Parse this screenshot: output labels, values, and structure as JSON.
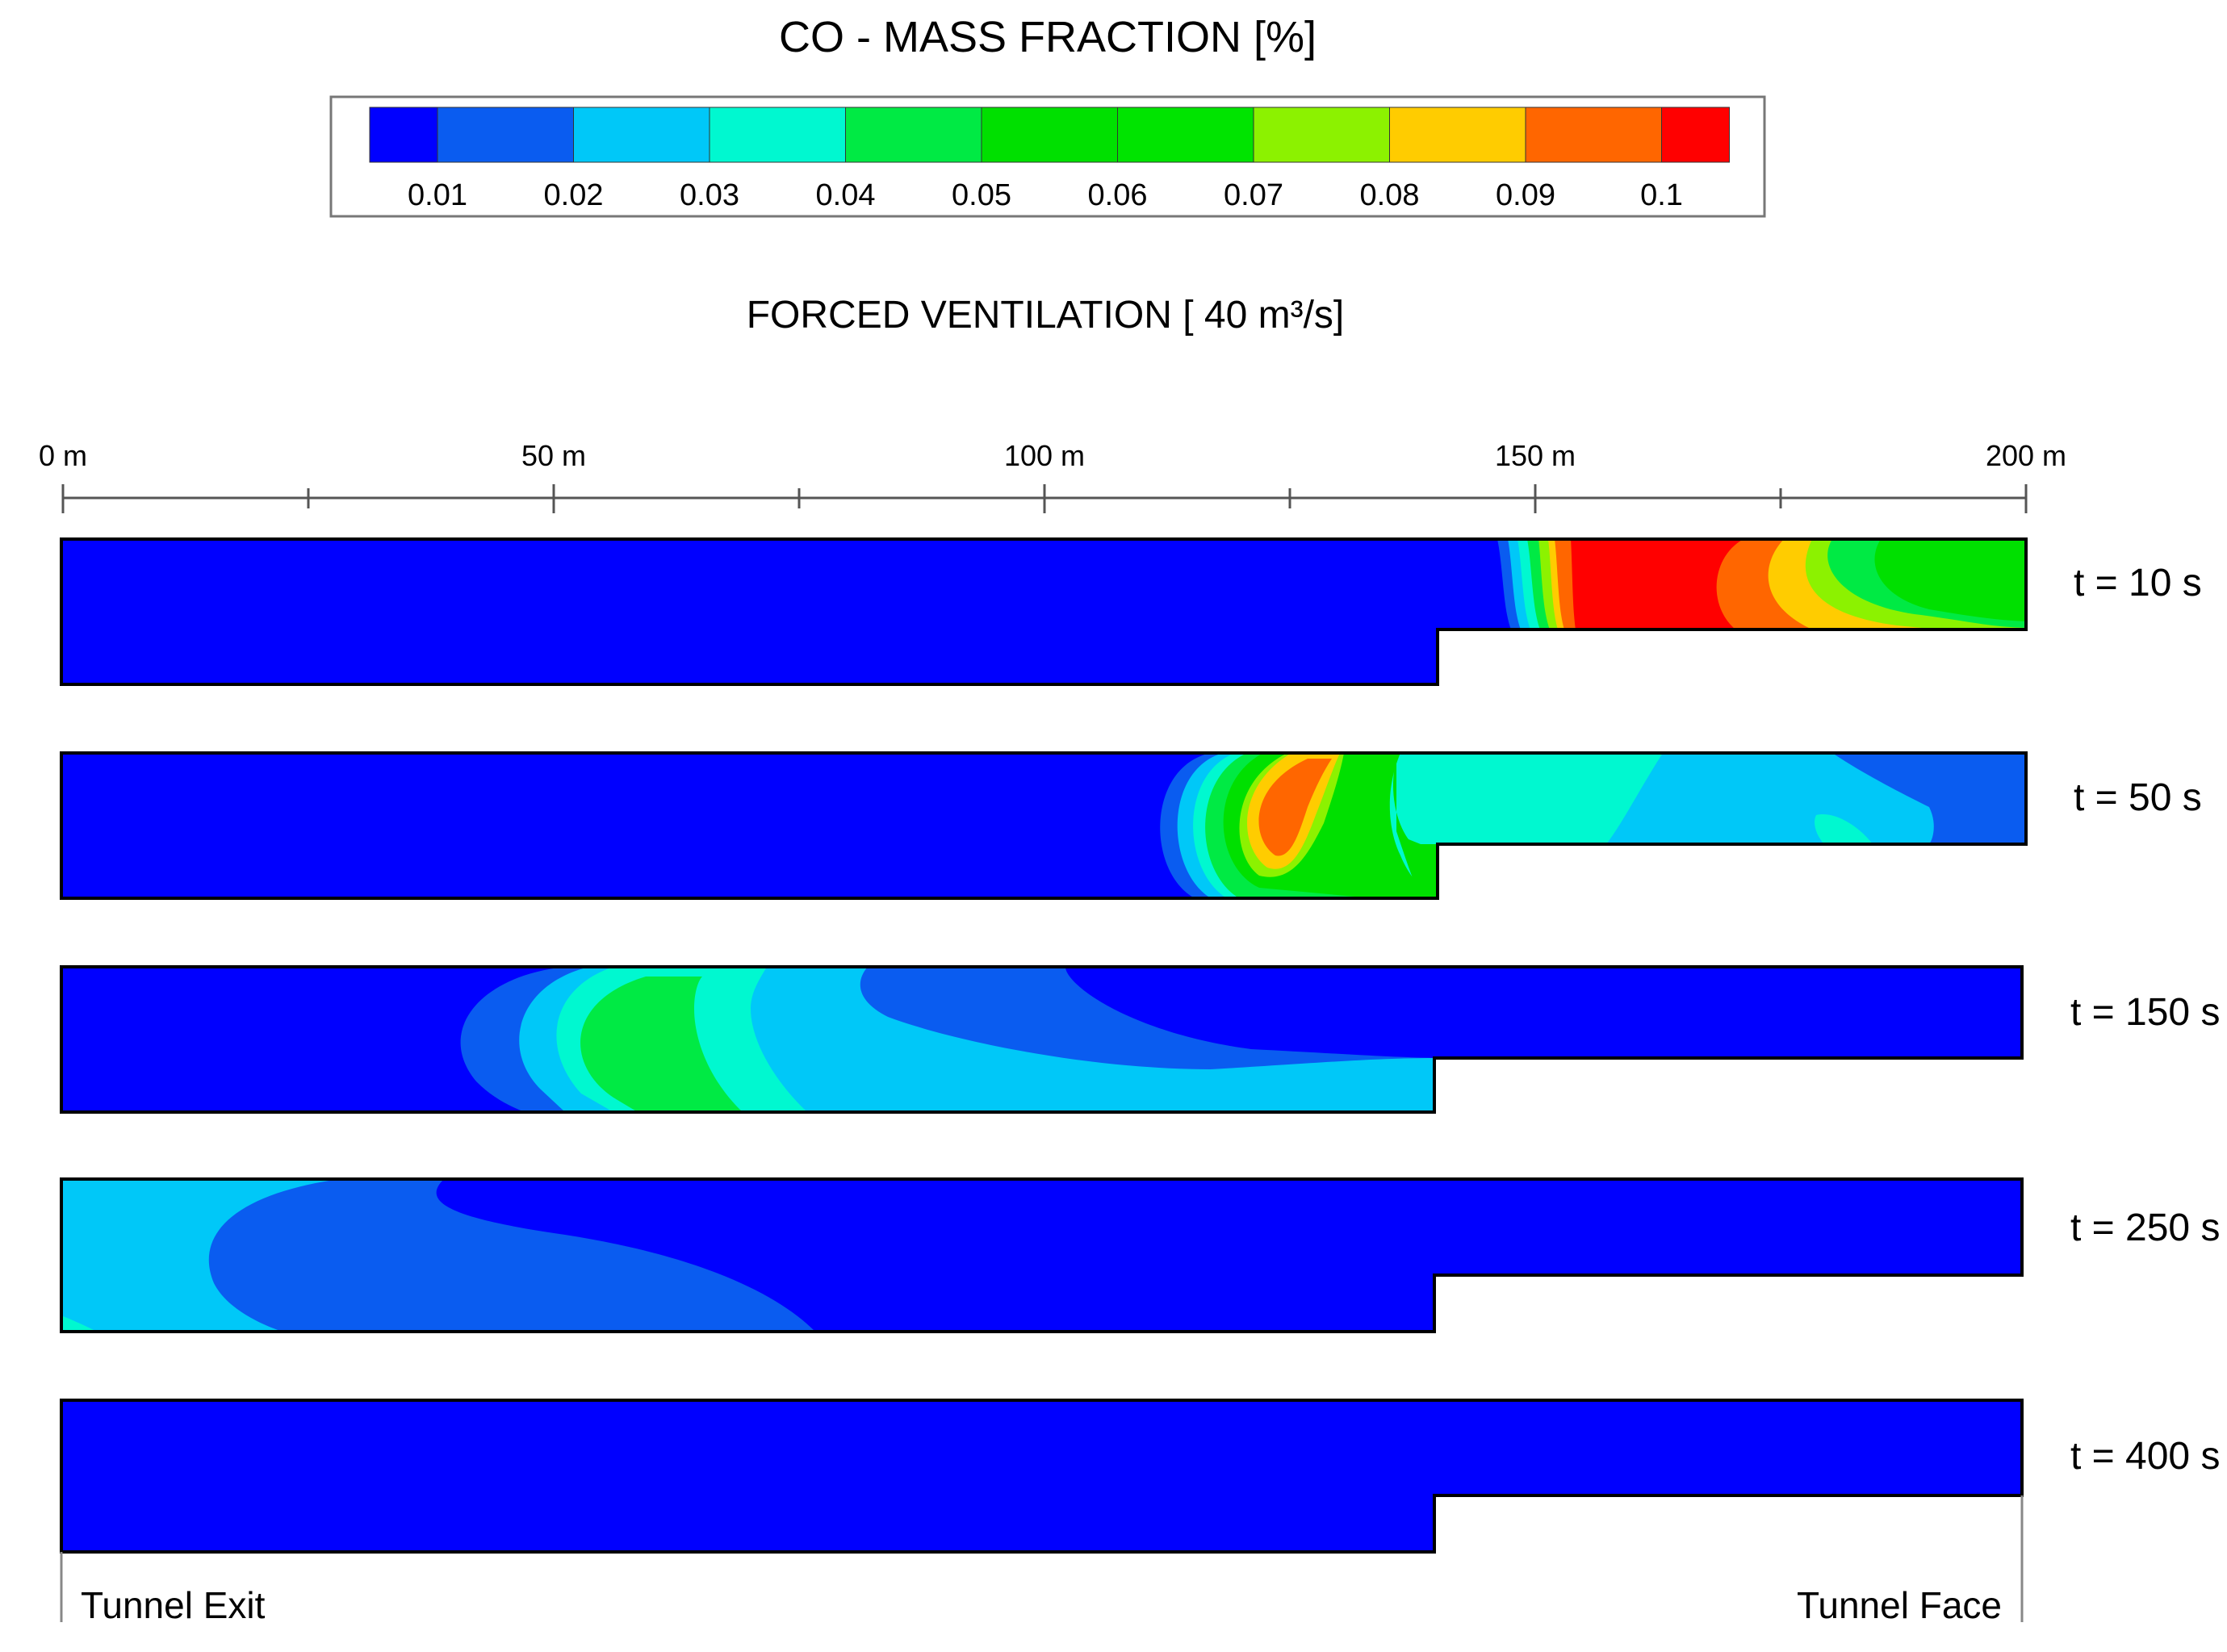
{
  "title": "CO -  MASS FRACTION [%]",
  "subtitle": "FORCED VENTILATION [ 40 m³/s]",
  "legend": {
    "ticks": [
      "0.01",
      "0.02",
      "0.03",
      "0.04",
      "0.05",
      "0.06",
      "0.07",
      "0.08",
      "0.09",
      "0.1"
    ],
    "colors": [
      "#0000ff",
      "#0a5cf0",
      "#00c8f8",
      "#00f8d0",
      "#00ea44",
      "#00e000",
      "#00e400",
      "#8cf200",
      "#ffcc00",
      "#ff6600",
      "#ff0000"
    ]
  },
  "scale": {
    "labels": [
      "0 m",
      "50 m",
      "100 m",
      "150 m",
      "200 m"
    ],
    "ticks_m": [
      0,
      25,
      50,
      75,
      100,
      125,
      150,
      175,
      200
    ]
  },
  "geometry_note_m": {
    "length": 200,
    "step_at": 140
  },
  "snapshots": [
    {
      "label": "t = 10 s"
    },
    {
      "label": "t = 50 s"
    },
    {
      "label": "t = 150 s"
    },
    {
      "label": "t = 250 s"
    },
    {
      "label": "t = 400 s"
    }
  ],
  "bottom_labels": {
    "left": "Tunnel Exit",
    "right": "Tunnel Face"
  }
}
